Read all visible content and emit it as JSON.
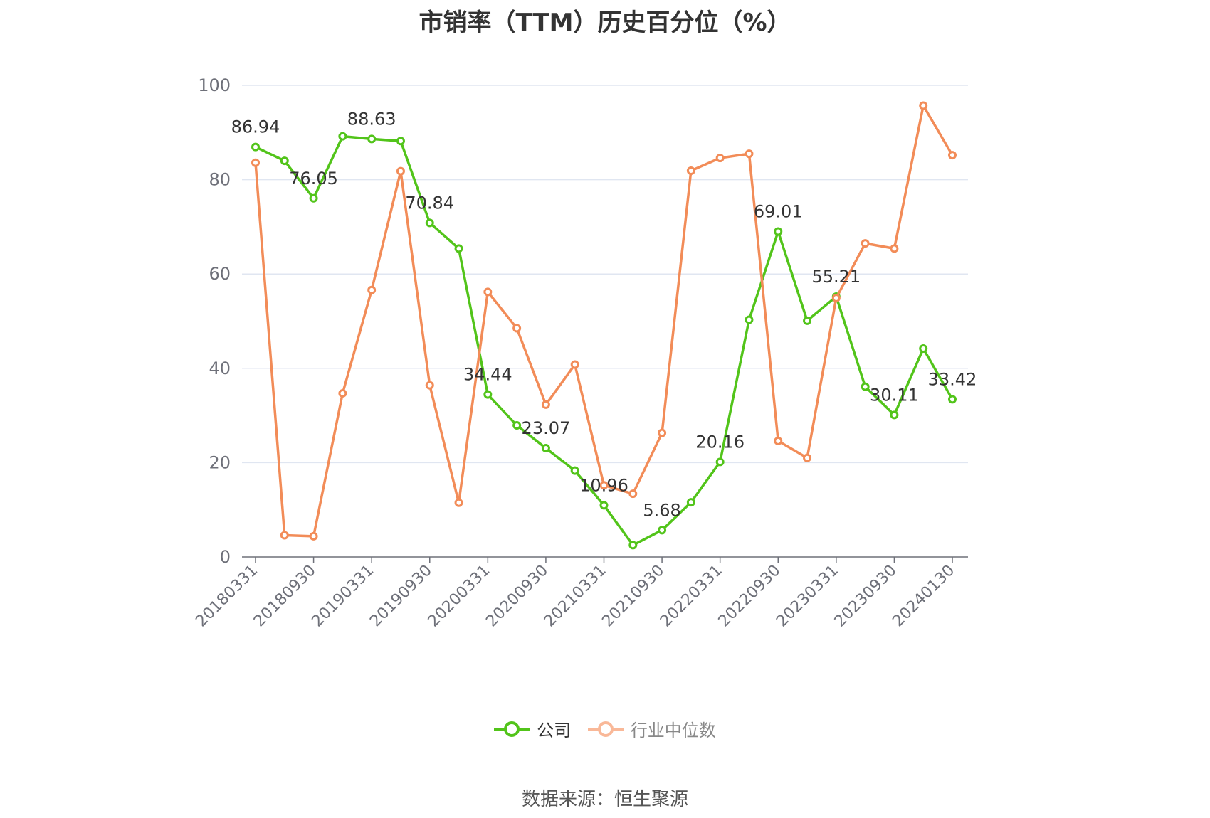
{
  "chart_data": {
    "type": "line",
    "title": "市销率（TTM）历史百分位（%）",
    "source": "数据来源：恒生聚源",
    "ylim": [
      0,
      100
    ],
    "y_ticks": [
      "0",
      "20",
      "40",
      "60",
      "80",
      "100"
    ],
    "x": [
      "20180331",
      "20180630",
      "20180930",
      "20181231",
      "20190331",
      "20190630",
      "20190930",
      "20191231",
      "20200331",
      "20200630",
      "20200930",
      "20201231",
      "20210331",
      "20210630",
      "20210930",
      "20211231",
      "20220331",
      "20220630",
      "20220930",
      "20221231",
      "20230331",
      "20230630",
      "20230930",
      "20231231",
      "20240130"
    ],
    "x_tick_labels": [
      "20180331",
      "20180930",
      "20190331",
      "20190930",
      "20200331",
      "20200930",
      "20210331",
      "20210930",
      "20220331",
      "20220930",
      "20230331",
      "20230930",
      "20240130"
    ],
    "series": [
      {
        "name": "公司",
        "color": "#52c41a",
        "values": [
          86.94,
          84.0,
          76.05,
          89.2,
          88.63,
          88.2,
          70.84,
          65.4,
          34.44,
          27.9,
          23.07,
          18.3,
          10.96,
          2.5,
          5.68,
          11.6,
          20.16,
          50.3,
          69.01,
          50.1,
          55.21,
          36.1,
          30.11,
          44.2,
          33.42
        ],
        "labels": {
          "0": "86.94",
          "2": "76.05",
          "4": "88.63",
          "6": "70.84",
          "8": "34.44",
          "10": "23.07",
          "12": "10.96",
          "14": "5.68",
          "16": "20.16",
          "18": "69.01",
          "20": "55.21",
          "22": "30.11",
          "24": "33.42"
        }
      },
      {
        "name": "行业中位数",
        "color": "#f28c58",
        "values": [
          83.6,
          4.6,
          4.4,
          34.7,
          56.6,
          81.8,
          36.4,
          11.5,
          56.2,
          48.5,
          32.3,
          40.8,
          15.2,
          13.4,
          26.3,
          81.9,
          84.6,
          85.5,
          24.6,
          21.0,
          54.9,
          66.5,
          65.4,
          95.7,
          85.2
        ]
      }
    ],
    "legend": [
      "公司",
      "行业中位数"
    ],
    "grid": true
  }
}
